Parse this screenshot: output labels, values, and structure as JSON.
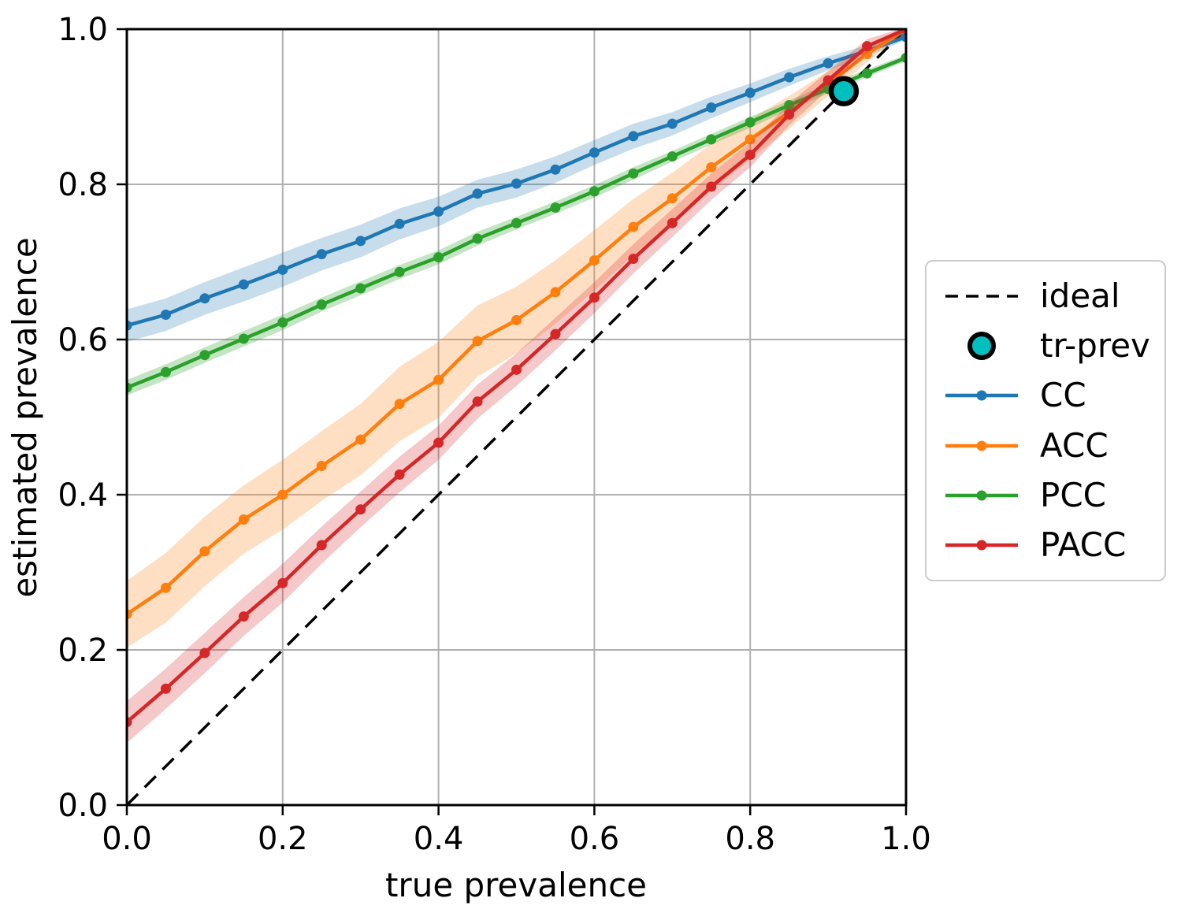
{
  "figure": {
    "xlabel": "true prevalence",
    "ylabel": "estimated prevalence",
    "background": "#ffffff",
    "spine_color": "#000000"
  },
  "legend": {
    "items": [
      {
        "label": "ideal",
        "type": "dashed-line",
        "color": "#000000"
      },
      {
        "label": "tr-prev",
        "type": "circle-marker",
        "color": "#00bfbf"
      },
      {
        "label": "CC",
        "type": "line-marker",
        "color": "#1f77b4"
      },
      {
        "label": "ACC",
        "type": "line-marker",
        "color": "#ff7f0e"
      },
      {
        "label": "PCC",
        "type": "line-marker",
        "color": "#2ca02c"
      },
      {
        "label": "PACC",
        "type": "line-marker",
        "color": "#d62728"
      }
    ]
  },
  "chart_data": {
    "type": "line",
    "title": "",
    "xlabel": "true prevalence",
    "ylabel": "estimated prevalence",
    "xlim": [
      0,
      1
    ],
    "ylim": [
      0,
      1
    ],
    "grid": true,
    "grid_color": "#b0b0b0",
    "legend_position": "right",
    "ticks": {
      "x": [
        0,
        0.2,
        0.4,
        0.6,
        0.8,
        1.0
      ],
      "x_labels": [
        "0.0",
        "0.2",
        "0.4",
        "0.6",
        "0.8",
        "1.0"
      ],
      "y": [
        0,
        0.2,
        0.4,
        0.6,
        0.8,
        1.0
      ],
      "y_labels": [
        "0.0",
        "0.2",
        "0.4",
        "0.6",
        "0.8",
        "1.0"
      ]
    },
    "x": [
      0.0,
      0.05,
      0.1,
      0.15,
      0.2,
      0.25,
      0.3,
      0.35,
      0.4,
      0.45,
      0.5,
      0.55,
      0.6,
      0.65,
      0.7,
      0.75,
      0.8,
      0.85,
      0.9,
      0.95,
      1.0
    ],
    "series": [
      {
        "name": "CC",
        "color": "#1f77b4",
        "band_opacity": 0.25,
        "values": [
          0.618,
          0.632,
          0.653,
          0.671,
          0.69,
          0.71,
          0.727,
          0.749,
          0.765,
          0.788,
          0.801,
          0.819,
          0.841,
          0.862,
          0.878,
          0.899,
          0.918,
          0.938,
          0.956,
          0.972,
          0.99
        ],
        "band_halfwidth": [
          0.021,
          0.021,
          0.021,
          0.022,
          0.022,
          0.021,
          0.021,
          0.02,
          0.019,
          0.018,
          0.018,
          0.017,
          0.016,
          0.016,
          0.015,
          0.014,
          0.012,
          0.011,
          0.009,
          0.007,
          0.004
        ]
      },
      {
        "name": "ACC",
        "color": "#ff7f0e",
        "band_opacity": 0.25,
        "values": [
          0.246,
          0.28,
          0.327,
          0.368,
          0.4,
          0.437,
          0.471,
          0.517,
          0.548,
          0.598,
          0.625,
          0.661,
          0.702,
          0.745,
          0.782,
          0.822,
          0.858,
          0.893,
          0.93,
          0.968,
          1.0
        ],
        "band_halfwidth": [
          0.043,
          0.045,
          0.045,
          0.044,
          0.045,
          0.045,
          0.046,
          0.048,
          0.049,
          0.046,
          0.043,
          0.041,
          0.039,
          0.036,
          0.033,
          0.03,
          0.026,
          0.021,
          0.016,
          0.01,
          0.003
        ]
      },
      {
        "name": "PCC",
        "color": "#2ca02c",
        "band_opacity": 0.28,
        "values": [
          0.538,
          0.558,
          0.58,
          0.601,
          0.622,
          0.645,
          0.666,
          0.687,
          0.706,
          0.73,
          0.75,
          0.77,
          0.791,
          0.814,
          0.836,
          0.858,
          0.88,
          0.902,
          0.923,
          0.943,
          0.963
        ],
        "band_halfwidth": [
          0.01,
          0.01,
          0.01,
          0.01,
          0.01,
          0.009,
          0.009,
          0.009,
          0.009,
          0.009,
          0.008,
          0.008,
          0.008,
          0.008,
          0.007,
          0.007,
          0.007,
          0.006,
          0.006,
          0.005,
          0.004
        ]
      },
      {
        "name": "PACC",
        "color": "#d62728",
        "band_opacity": 0.25,
        "values": [
          0.107,
          0.15,
          0.196,
          0.243,
          0.286,
          0.335,
          0.381,
          0.426,
          0.467,
          0.52,
          0.561,
          0.607,
          0.654,
          0.704,
          0.75,
          0.797,
          0.838,
          0.89,
          0.934,
          0.978,
          1.0
        ],
        "band_halfwidth": [
          0.027,
          0.026,
          0.026,
          0.025,
          0.025,
          0.024,
          0.023,
          0.023,
          0.022,
          0.022,
          0.021,
          0.021,
          0.02,
          0.019,
          0.018,
          0.017,
          0.016,
          0.014,
          0.012,
          0.009,
          0.003
        ]
      }
    ],
    "ideal": {
      "label": "ideal",
      "color": "#000000",
      "style": "dashed",
      "from": [
        0,
        0
      ],
      "to": [
        1,
        1
      ]
    },
    "tr_prev": {
      "label": "tr-prev",
      "x": 0.92,
      "y": 0.92,
      "fill": "#00bfbf",
      "edge": "#000000"
    }
  }
}
